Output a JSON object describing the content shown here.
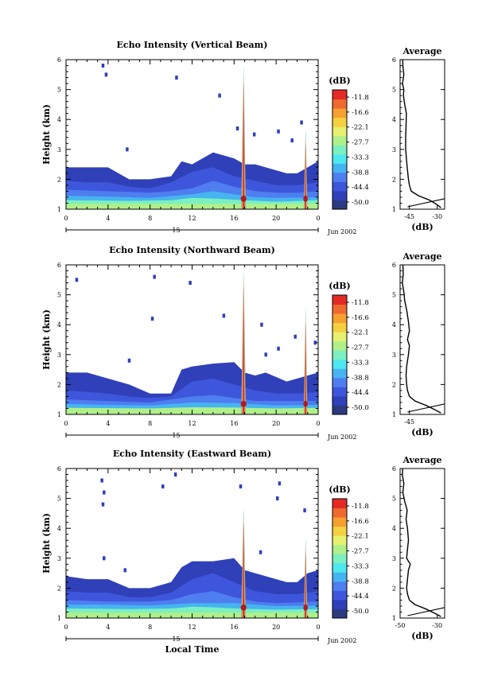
{
  "colors": {
    "background": "#ffffff",
    "axis": "#000000",
    "cb_midpoints": [
      "#2c3a80",
      "#2f40b8",
      "#3e56dc",
      "#4e7ef0",
      "#46b4f0",
      "#4ee8f0",
      "#7cf0c0",
      "#b0f08a",
      "#e8f070",
      "#f5d040",
      "#f5a030",
      "#ef6a2e",
      "#e52a25"
    ]
  },
  "chart_data": [
    {
      "type": "heatmap",
      "panel_id": "vertical",
      "title": "Echo Intensity (Vertical Beam)",
      "ylabel": "Height (km)",
      "xlabel": "",
      "x_ticks": [
        "0",
        "4",
        "8",
        "12",
        "16",
        "20",
        "0"
      ],
      "x_range_hours": [
        0,
        24
      ],
      "y_ticks": [
        "1",
        "2",
        "3",
        "4",
        "5",
        "6"
      ],
      "ylim_km": [
        1,
        6
      ],
      "date_axis": {
        "day": "15",
        "month_year": "Jun 2002"
      },
      "colorbar": {
        "unit": "(dB)",
        "labels": [
          "-11.8",
          "-16.6",
          "-22.1",
          "-27.7",
          "-33.3",
          "-38.8",
          "-44.4",
          "-50.0"
        ]
      },
      "layers": [
        {
          "x": [
            0,
            2,
            4,
            6,
            8,
            10,
            11,
            12,
            14,
            16,
            17,
            18,
            19,
            21,
            22,
            23,
            24
          ],
          "top": [
            2.4,
            2.4,
            2.4,
            2.0,
            2.0,
            2.1,
            2.6,
            2.5,
            2.9,
            2.7,
            2.5,
            2.5,
            2.4,
            2.2,
            2.2,
            2.4,
            2.6
          ],
          "level": "#2f40b8"
        },
        {
          "x": [
            0,
            2,
            4,
            6,
            8,
            10,
            12,
            14,
            16,
            18,
            20,
            22,
            24
          ],
          "top": [
            1.95,
            1.9,
            1.9,
            1.75,
            1.7,
            1.9,
            2.25,
            2.4,
            2.1,
            1.95,
            1.8,
            1.8,
            1.9
          ],
          "level": "#3e56dc"
        },
        {
          "x": [
            0,
            4,
            8,
            10,
            12,
            14,
            16,
            18,
            20,
            22,
            24
          ],
          "top": [
            1.65,
            1.6,
            1.55,
            1.6,
            1.7,
            1.95,
            1.75,
            1.6,
            1.55,
            1.55,
            1.6
          ],
          "level": "#4e7ef0"
        },
        {
          "x": [
            0,
            4,
            8,
            12,
            14,
            16,
            18,
            20,
            24
          ],
          "top": [
            1.45,
            1.42,
            1.38,
            1.5,
            1.6,
            1.5,
            1.4,
            1.38,
            1.4
          ],
          "level": "#46b4f0"
        },
        {
          "x": [
            0,
            6,
            10,
            12,
            14,
            16,
            20,
            24
          ],
          "top": [
            1.3,
            1.28,
            1.3,
            1.38,
            1.36,
            1.32,
            1.25,
            1.3
          ],
          "level": "#7cf0c0"
        }
      ],
      "spikes": [
        {
          "hour": 16.9,
          "top_km": 5.8,
          "width_h": 0.45
        },
        {
          "hour": 22.8,
          "top_km": 3.7,
          "width_h": 0.35
        }
      ],
      "scatter_cells": [
        [
          3.5,
          5.8
        ],
        [
          3.8,
          5.5
        ],
        [
          10.5,
          5.4
        ],
        [
          14.6,
          4.8
        ],
        [
          16.3,
          3.7
        ],
        [
          5.8,
          3.0
        ],
        [
          17.9,
          3.5
        ],
        [
          20.2,
          3.6
        ],
        [
          22.4,
          3.9
        ],
        [
          21.5,
          3.3
        ]
      ],
      "average_profile": {
        "title": "Average",
        "xlabel": "(dB)",
        "x_ticks": [
          "-45",
          "-30"
        ],
        "xlim_db": [
          -50,
          -26
        ],
        "y_ticks": [
          "1",
          "2",
          "3",
          "4",
          "5",
          "6"
        ],
        "ylim_km": [
          1,
          6
        ],
        "height_km": [
          1.05,
          1.15,
          1.3,
          1.45,
          1.6,
          1.8,
          2.0,
          2.3,
          2.6,
          3.0,
          3.4,
          3.8,
          4.2,
          4.5,
          4.8,
          5.0,
          5.2,
          5.5,
          5.8,
          6.0
        ],
        "power_db": [
          -28,
          -30,
          -34,
          -40,
          -44,
          -45,
          -45.5,
          -46,
          -46.5,
          -47,
          -47,
          -46.8,
          -46.6,
          -47.5,
          -48.2,
          -48,
          -48.7,
          -48,
          -48.5,
          -48.6
        ]
      }
    },
    {
      "type": "heatmap",
      "panel_id": "northward",
      "title": "Echo Intensity (Northward Beam)",
      "ylabel": "Height (km)",
      "xlabel": "",
      "x_ticks": [
        "0",
        "4",
        "8",
        "12",
        "16",
        "20",
        "0"
      ],
      "x_range_hours": [
        0,
        24
      ],
      "y_ticks": [
        "1",
        "2",
        "3",
        "4",
        "5",
        "6"
      ],
      "ylim_km": [
        1,
        6
      ],
      "date_axis": {
        "day": "15",
        "month_year": "Jun 2002"
      },
      "colorbar": {
        "unit": "(dB)",
        "labels": [
          "-11.8",
          "-16.6",
          "-22.1",
          "-27.7",
          "-33.3",
          "-38.8",
          "-44.4",
          "-50.0"
        ]
      },
      "layers": [
        {
          "x": [
            0,
            2,
            4,
            6,
            8,
            10,
            11,
            12,
            14,
            16,
            17,
            18,
            19,
            21,
            22,
            23,
            24
          ],
          "top": [
            2.4,
            2.4,
            2.2,
            2.0,
            1.7,
            1.7,
            2.5,
            2.6,
            2.7,
            2.75,
            2.4,
            2.3,
            2.4,
            2.1,
            2.2,
            2.3,
            2.4
          ],
          "level": "#2f40b8"
        },
        {
          "x": [
            0,
            2,
            4,
            6,
            8,
            10,
            12,
            14,
            16,
            18,
            20,
            22,
            24
          ],
          "top": [
            1.8,
            1.75,
            1.7,
            1.6,
            1.55,
            1.6,
            2.1,
            2.2,
            2.0,
            1.8,
            1.7,
            1.7,
            1.75
          ],
          "level": "#3e56dc"
        },
        {
          "x": [
            0,
            4,
            8,
            12,
            14,
            16,
            18,
            20,
            24
          ],
          "top": [
            1.5,
            1.45,
            1.4,
            1.6,
            1.65,
            1.55,
            1.45,
            1.45,
            1.45
          ],
          "level": "#4e7ef0"
        },
        {
          "x": [
            0,
            4,
            8,
            12,
            16,
            20,
            24
          ],
          "top": [
            1.35,
            1.32,
            1.3,
            1.4,
            1.38,
            1.3,
            1.32
          ],
          "level": "#46b4f0"
        },
        {
          "x": [
            0,
            8,
            12,
            16,
            20,
            24
          ],
          "top": [
            1.22,
            1.2,
            1.24,
            1.23,
            1.2,
            1.22
          ],
          "level": "#b0f08a"
        }
      ],
      "spikes": [
        {
          "hour": 16.9,
          "top_km": 5.85,
          "width_h": 0.45
        },
        {
          "hour": 22.8,
          "top_km": 4.6,
          "width_h": 0.35
        }
      ],
      "scatter_cells": [
        [
          1.0,
          5.5
        ],
        [
          8.4,
          5.6
        ],
        [
          8.2,
          4.2
        ],
        [
          11.8,
          5.4
        ],
        [
          6.0,
          2.8
        ],
        [
          18.6,
          4.0
        ],
        [
          19.0,
          3.0
        ],
        [
          20.2,
          3.2
        ],
        [
          21.8,
          3.6
        ],
        [
          23.7,
          3.4
        ],
        [
          15.0,
          4.3
        ]
      ],
      "average_profile": {
        "title": "Average",
        "xlabel": "(dB)",
        "x_ticks": [
          "-45"
        ],
        "xlim_db": [
          -50,
          -26
        ],
        "y_ticks": [
          "1",
          "2",
          "3",
          "4",
          "5",
          "6"
        ],
        "ylim_km": [
          1,
          6
        ],
        "height_km": [
          1.05,
          1.15,
          1.3,
          1.45,
          1.6,
          1.8,
          2.0,
          2.3,
          2.6,
          3.0,
          3.3,
          3.5,
          3.8,
          4.1,
          4.5,
          4.8,
          5.1,
          5.4,
          5.7,
          6.0
        ],
        "power_db": [
          -28,
          -31,
          -36,
          -42,
          -45,
          -46,
          -46.5,
          -46.8,
          -46.5,
          -45.5,
          -45,
          -46,
          -45,
          -45.5,
          -46.5,
          -47.5,
          -48,
          -48.8,
          -48.3,
          -48.5
        ]
      }
    },
    {
      "type": "heatmap",
      "panel_id": "eastward",
      "title": "Echo Intensity (Eastward Beam)",
      "ylabel": "Height (km)",
      "xlabel": "Local Time",
      "x_ticks": [
        "0",
        "4",
        "8",
        "12",
        "16",
        "20",
        "0"
      ],
      "x_range_hours": [
        0,
        24
      ],
      "y_ticks": [
        "1",
        "2",
        "3",
        "4",
        "5",
        "6"
      ],
      "ylim_km": [
        1,
        6
      ],
      "date_axis": {
        "day": "15",
        "month_year": "Jun 2002"
      },
      "colorbar": {
        "unit": "(dB)",
        "labels": [
          "-11.8",
          "-16.6",
          "-22.1",
          "-27.7",
          "-33.3",
          "-38.8",
          "-44.4",
          "-50.0"
        ]
      },
      "layers": [
        {
          "x": [
            0,
            2,
            4,
            6,
            8,
            10,
            11,
            12,
            14,
            16,
            17,
            18,
            19,
            21,
            22,
            23,
            24
          ],
          "top": [
            2.4,
            2.3,
            2.3,
            2.0,
            2.0,
            2.2,
            2.7,
            2.9,
            2.9,
            3.0,
            2.6,
            2.5,
            2.4,
            2.2,
            2.2,
            2.5,
            2.6
          ],
          "level": "#2f40b8"
        },
        {
          "x": [
            0,
            2,
            4,
            6,
            8,
            10,
            12,
            14,
            16,
            18,
            20,
            22,
            24
          ],
          "top": [
            1.9,
            1.85,
            1.85,
            1.7,
            1.7,
            1.85,
            2.3,
            2.5,
            2.2,
            1.9,
            1.8,
            1.8,
            1.9
          ],
          "level": "#3e56dc"
        },
        {
          "x": [
            0,
            4,
            8,
            10,
            12,
            14,
            16,
            18,
            20,
            24
          ],
          "top": [
            1.6,
            1.55,
            1.55,
            1.6,
            1.8,
            1.9,
            1.7,
            1.55,
            1.5,
            1.55
          ],
          "level": "#4e7ef0"
        },
        {
          "x": [
            0,
            4,
            8,
            12,
            16,
            20,
            24
          ],
          "top": [
            1.45,
            1.45,
            1.42,
            1.5,
            1.5,
            1.4,
            1.42
          ],
          "level": "#46b4f0"
        },
        {
          "x": [
            0,
            6,
            10,
            12,
            14,
            16,
            20,
            24
          ],
          "top": [
            1.32,
            1.3,
            1.32,
            1.38,
            1.36,
            1.32,
            1.28,
            1.3
          ],
          "level": "#7cf0c0"
        }
      ],
      "spikes": [
        {
          "hour": 16.9,
          "top_km": 4.7,
          "width_h": 0.45
        },
        {
          "hour": 22.8,
          "top_km": 3.7,
          "width_h": 0.35
        }
      ],
      "scatter_cells": [
        [
          3.4,
          5.6
        ],
        [
          3.6,
          5.2
        ],
        [
          3.5,
          4.8
        ],
        [
          10.4,
          5.8
        ],
        [
          9.2,
          5.4
        ],
        [
          16.6,
          5.4
        ],
        [
          20.3,
          5.5
        ],
        [
          20.1,
          5.0
        ],
        [
          22.7,
          4.6
        ],
        [
          3.6,
          3.0
        ],
        [
          18.5,
          3.2
        ],
        [
          5.6,
          2.6
        ]
      ],
      "average_profile": {
        "title": "Average",
        "xlabel": "(dB)",
        "x_ticks": [
          "-50",
          "-30"
        ],
        "xlim_db": [
          -50,
          -26
        ],
        "y_ticks": [
          "1",
          "2",
          "3",
          "4",
          "5",
          "6"
        ],
        "ylim_km": [
          1,
          6
        ],
        "height_km": [
          1.05,
          1.15,
          1.3,
          1.45,
          1.6,
          1.8,
          2.0,
          2.3,
          2.6,
          2.8,
          3.0,
          3.3,
          3.6,
          4.0,
          4.3,
          4.6,
          4.9,
          5.2,
          5.5,
          5.8,
          6.0
        ],
        "power_db": [
          -28,
          -31,
          -36,
          -42,
          -45,
          -46,
          -46.5,
          -46,
          -45.5,
          -44.5,
          -46.5,
          -46,
          -45.5,
          -46,
          -46.8,
          -46.2,
          -47.5,
          -48.5,
          -48,
          -48.8,
          -48.6
        ]
      }
    }
  ]
}
